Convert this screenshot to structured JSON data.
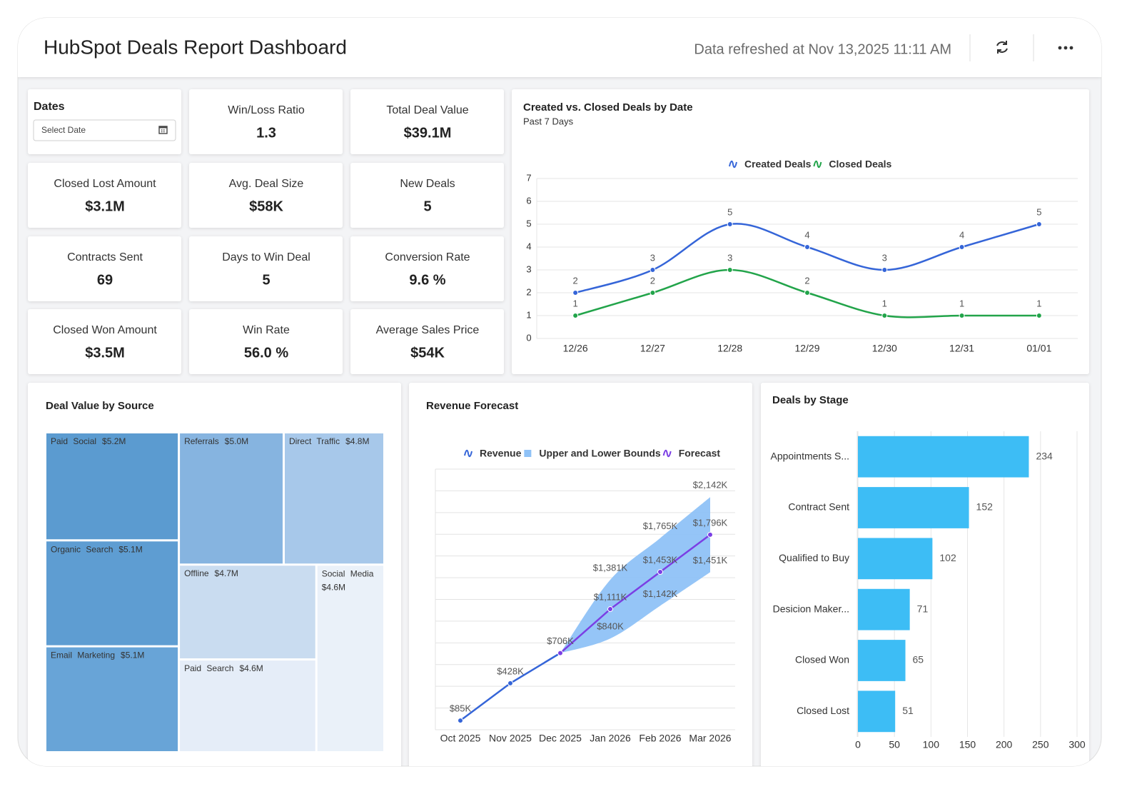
{
  "header": {
    "title": "HubSpot Deals Report Dashboard",
    "refreshed": "Data refreshed at Nov 13,2025 11:11 AM"
  },
  "filter": {
    "label": "Dates",
    "placeholder": "Select Date"
  },
  "kpis": [
    {
      "label": "Win/Loss Ratio",
      "value": "1.3"
    },
    {
      "label": "Total Deal Value",
      "value": "$39.1M"
    },
    {
      "label": "Closed Lost Amount",
      "value": "$3.1M"
    },
    {
      "label": "Avg. Deal Size",
      "value": "$58K"
    },
    {
      "label": "New Deals",
      "value": "5"
    },
    {
      "label": "Contracts Sent",
      "value": "69"
    },
    {
      "label": "Days to Win Deal",
      "value": "5"
    },
    {
      "label": "Conversion Rate",
      "value": "9.6 %"
    },
    {
      "label": "Closed Won Amount",
      "value": "$3.5M"
    },
    {
      "label": "Win Rate",
      "value": "56.0 %"
    },
    {
      "label": "Average Sales Price",
      "value": "$54K"
    }
  ],
  "chart_data": [
    {
      "type": "line",
      "title": "Created vs. Closed Deals by Date",
      "subtitle": "Past 7 Days",
      "categories": [
        "12/26",
        "12/27",
        "12/28",
        "12/29",
        "12/30",
        "12/31",
        "01/01"
      ],
      "series": [
        {
          "name": "Created Deals",
          "color": "#3565d8",
          "values": [
            2,
            3,
            5,
            4,
            3,
            4,
            5
          ]
        },
        {
          "name": "Closed Deals",
          "color": "#22a44a",
          "values": [
            1,
            2,
            3,
            2,
            1,
            1,
            1
          ]
        }
      ],
      "ylim": [
        0,
        7
      ],
      "yticks": [
        0,
        1,
        2,
        3,
        4,
        5,
        6,
        7
      ],
      "grid": true,
      "smooth": true
    },
    {
      "type": "treemap",
      "title": "Deal Value by Source",
      "categories": [
        "Paid Social",
        "Organic Search",
        "Email Marketing",
        "Referrals",
        "Direct Traffic",
        "Offline",
        "Social Media",
        "Paid Search"
      ],
      "values": [
        5.2,
        5.1,
        5.1,
        5.0,
        4.8,
        4.7,
        4.6,
        4.6
      ],
      "value_labels": [
        "$5.2M",
        "$5.1M",
        "$5.1M",
        "$5.0M",
        "$4.8M",
        "$4.7M",
        "$4.6M",
        "$4.6M"
      ],
      "colors": [
        "#5b9bd0",
        "#5e9dd2",
        "#68a4d7",
        "#86b4e0",
        "#a7c8ea",
        "#c9dcf0",
        "#eaf1f9",
        "#e5edf8"
      ]
    },
    {
      "type": "forecast",
      "title": "Revenue Forecast",
      "categories": [
        "Oct 2025",
        "Nov 2025",
        "Dec 2025",
        "Jan 2026",
        "Feb 2026",
        "Mar 2026"
      ],
      "series": [
        {
          "name": "Revenue",
          "color": "#3565d8",
          "values": [
            85,
            428,
            706,
            null,
            null,
            null
          ],
          "value_labels": [
            "$85K",
            "$428K",
            "$706K",
            null,
            null,
            null
          ]
        },
        {
          "name": "Upper and Lower Bounds",
          "color": "#8fc2f7",
          "upper": [
            null,
            null,
            706,
            1381,
            1765,
            2142
          ],
          "lower": [
            null,
            null,
            706,
            840,
            1142,
            1451
          ],
          "upper_labels": [
            null,
            null,
            null,
            "$1,381K",
            "$1,765K",
            "$2,142K"
          ],
          "lower_labels": [
            null,
            null,
            null,
            "$840K",
            "$1,142K",
            "$1,451K"
          ]
        },
        {
          "name": "Forecast",
          "color": "#7b3fe4",
          "values": [
            null,
            null,
            706,
            1111,
            1453,
            1796
          ],
          "value_labels": [
            null,
            null,
            null,
            "$1,111K",
            "$1,453K",
            "$1,796K"
          ]
        }
      ],
      "ylim": [
        0,
        2400
      ],
      "yticks": [
        0,
        200,
        400,
        600,
        800,
        1000,
        1200,
        1400,
        1600,
        1800,
        2000,
        2200,
        2400
      ],
      "show_ytick_labels": false,
      "grid": true
    },
    {
      "type": "hbar",
      "title": "Deals by Stage",
      "categories": [
        "Appointments S...",
        "Contract Sent",
        "Qualified to Buy",
        "Desicion Maker...",
        "Closed Won",
        "Closed Lost"
      ],
      "values": [
        234,
        152,
        102,
        71,
        65,
        51
      ],
      "color": "#3dbdf5",
      "xlim": [
        0,
        300
      ],
      "xticks": [
        0,
        50,
        100,
        150,
        200,
        250,
        300
      ],
      "grid": true
    }
  ]
}
